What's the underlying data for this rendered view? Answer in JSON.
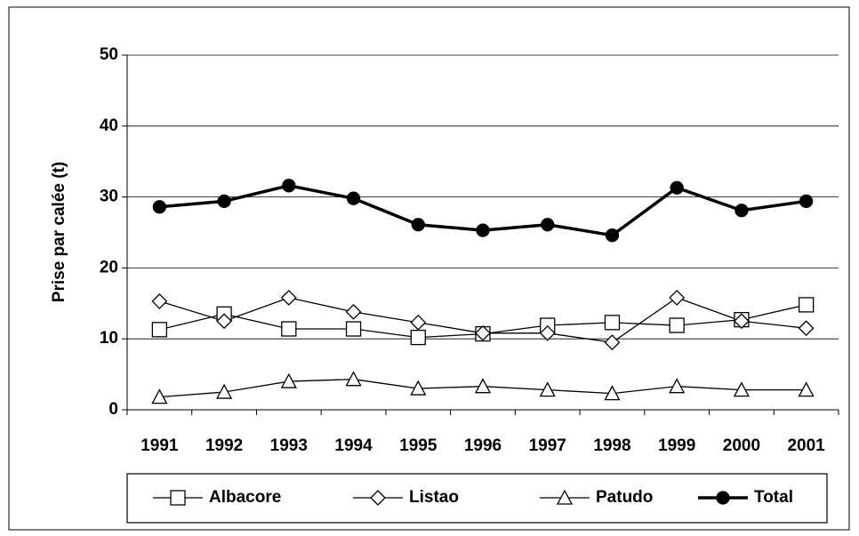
{
  "chart_data": {
    "type": "line",
    "y_label": "Prise par calée (t)",
    "categories": [
      "1991",
      "1992",
      "1993",
      "1994",
      "1995",
      "1996",
      "1997",
      "1998",
      "1999",
      "2000",
      "2001"
    ],
    "series": [
      {
        "name": "Albacore",
        "color": "#000000",
        "marker": "square",
        "line_width": 1.3,
        "values": [
          11.3,
          13.5,
          11.4,
          11.4,
          10.2,
          10.7,
          11.9,
          12.3,
          11.9,
          12.7,
          14.8
        ]
      },
      {
        "name": "Listao",
        "color": "#000000",
        "marker": "diamond",
        "line_width": 1.3,
        "values": [
          15.3,
          12.5,
          15.8,
          13.8,
          12.3,
          10.8,
          10.8,
          9.5,
          15.8,
          12.5,
          11.5
        ]
      },
      {
        "name": "Patudo",
        "color": "#000000",
        "marker": "triangle",
        "line_width": 1.3,
        "values": [
          1.8,
          2.5,
          4.0,
          4.3,
          3.0,
          3.3,
          2.8,
          2.3,
          3.3,
          2.8,
          2.8
        ]
      },
      {
        "name": "Total",
        "color": "#000000",
        "marker": "circle",
        "line_width": 3.5,
        "values": [
          28.6,
          29.4,
          31.6,
          29.8,
          26.1,
          25.3,
          26.1,
          24.6,
          31.3,
          28.1,
          29.4
        ]
      }
    ],
    "ylim": [
      0,
      50
    ],
    "yticks": [
      0,
      10,
      20,
      30,
      40,
      50
    ],
    "grid": true,
    "legend": "bottom"
  }
}
